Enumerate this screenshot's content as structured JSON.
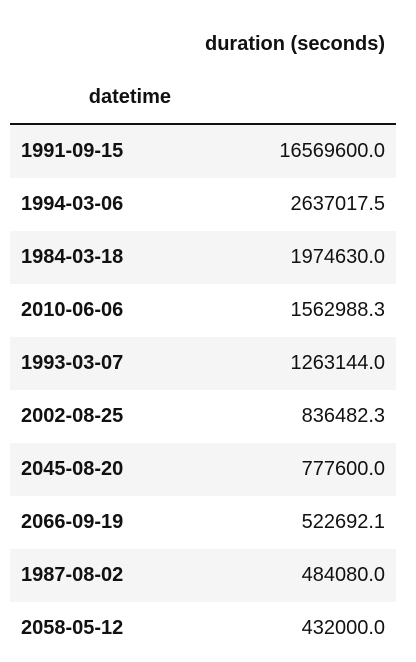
{
  "table": {
    "column_header": "duration (seconds)",
    "index_name": "datetime",
    "rows": [
      {
        "datetime": "1991-09-15",
        "duration": "16569600.0"
      },
      {
        "datetime": "1994-03-06",
        "duration": "2637017.5"
      },
      {
        "datetime": "1984-03-18",
        "duration": "1974630.0"
      },
      {
        "datetime": "2010-06-06",
        "duration": "1562988.3"
      },
      {
        "datetime": "1993-03-07",
        "duration": "1263144.0"
      },
      {
        "datetime": "2002-08-25",
        "duration": "836482.3"
      },
      {
        "datetime": "2045-08-20",
        "duration": "777600.0"
      },
      {
        "datetime": "2066-09-19",
        "duration": "522692.1"
      },
      {
        "datetime": "1987-08-02",
        "duration": "484080.0"
      },
      {
        "datetime": "2058-05-12",
        "duration": "432000.0"
      }
    ]
  }
}
